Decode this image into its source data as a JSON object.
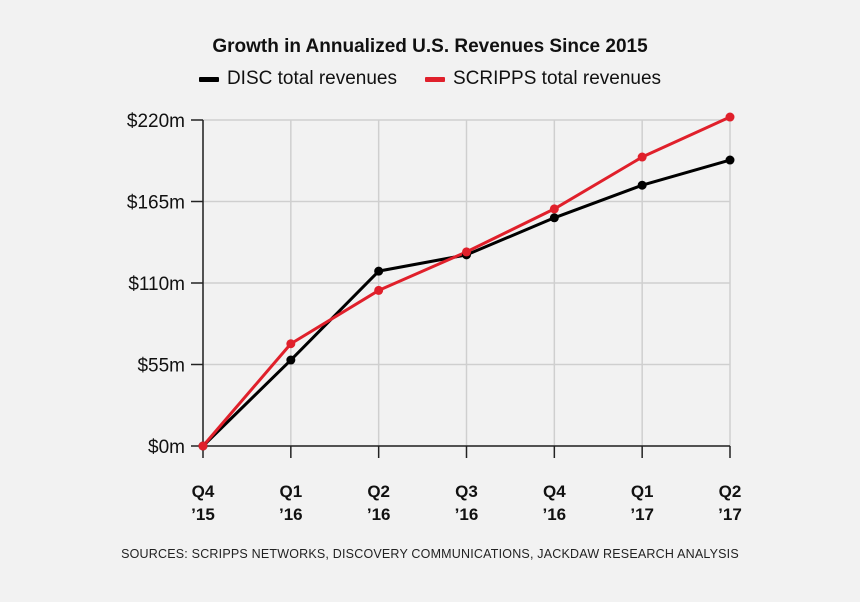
{
  "chart_data": {
    "type": "line",
    "title": "Growth in Annualized U.S. Revenues Since 2015",
    "categories": [
      {
        "line1": "Q4",
        "line2": "’15"
      },
      {
        "line1": "Q1",
        "line2": "’16"
      },
      {
        "line1": "Q2",
        "line2": "’16"
      },
      {
        "line1": "Q3",
        "line2": "’16"
      },
      {
        "line1": "Q4",
        "line2": "’16"
      },
      {
        "line1": "Q1",
        "line2": "’17"
      },
      {
        "line1": "Q2",
        "line2": "’17"
      }
    ],
    "yticks": [
      {
        "value": 0,
        "label": "$0m"
      },
      {
        "value": 55,
        "label": "$55m"
      },
      {
        "value": 110,
        "label": "$110m"
      },
      {
        "value": 165,
        "label": "$165m"
      },
      {
        "value": 220,
        "label": "$220m"
      }
    ],
    "ylim": [
      0,
      220
    ],
    "grid": true,
    "legend_position": "top-center",
    "series": [
      {
        "name": "DISC total revenues",
        "color": "#000000",
        "values": [
          0,
          58,
          118,
          129,
          154,
          176,
          193
        ]
      },
      {
        "name": "SCRIPPS total revenues",
        "color": "#e0202b",
        "values": [
          0,
          69,
          105,
          131,
          160,
          195,
          222
        ]
      }
    ]
  },
  "footer": {
    "source": "SOURCES: SCRIPPS NETWORKS, DISCOVERY COMMUNICATIONS, JACKDAW RESEARCH ANALYSIS"
  }
}
